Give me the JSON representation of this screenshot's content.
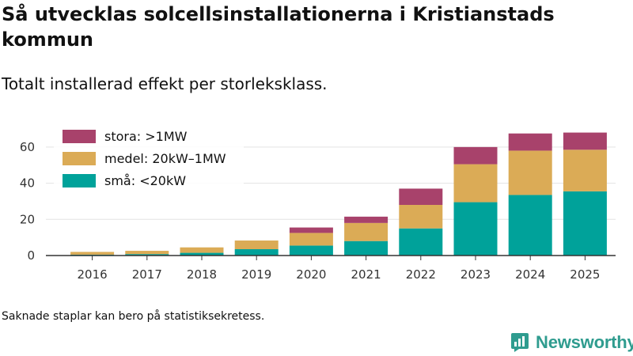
{
  "title": "Så utvecklas solcellsinstallationerna i Kristianstads kommun",
  "subtitle": "Totalt installerad effekt per storleksklass.",
  "note": "Saknade staplar kan bero på statistiksekretess.",
  "brand": {
    "name": "Newsworthy",
    "icon": "newsworthy-logo-icon"
  },
  "colors": {
    "small": "#00a29a",
    "medium": "#dbab56",
    "large": "#a8426b",
    "axis": "#333333",
    "grid": "#e3e3e3"
  },
  "chart_data": {
    "type": "bar",
    "stacked": true,
    "categories": [
      "2016",
      "2017",
      "2018",
      "2019",
      "2020",
      "2021",
      "2022",
      "2023",
      "2024",
      "2025"
    ],
    "series": [
      {
        "name": "små: <20kW",
        "key": "small",
        "values": [
          0.5,
          0.8,
          1.5,
          3.5,
          5.5,
          8,
          15,
          29.5,
          33.5,
          35.5
        ]
      },
      {
        "name": "medel: 20kW–1MW",
        "key": "medium",
        "values": [
          1.5,
          1.8,
          3,
          4.8,
          7,
          10,
          13,
          21,
          24.5,
          23
        ]
      },
      {
        "name": "stora: >1MW",
        "key": "large",
        "values": [
          0,
          0,
          0,
          0,
          3,
          3.5,
          9,
          9.5,
          9.5,
          9.5
        ]
      }
    ],
    "legend_order": [
      "stora: >1MW",
      "medel: 20kW–1MW",
      "små: <20kW"
    ],
    "yticks": [
      "0",
      "20",
      "40",
      "60"
    ],
    "ylim": [
      0,
      70
    ],
    "xlabel": "",
    "ylabel": "",
    "grid": true,
    "legend_position": "top-left"
  }
}
